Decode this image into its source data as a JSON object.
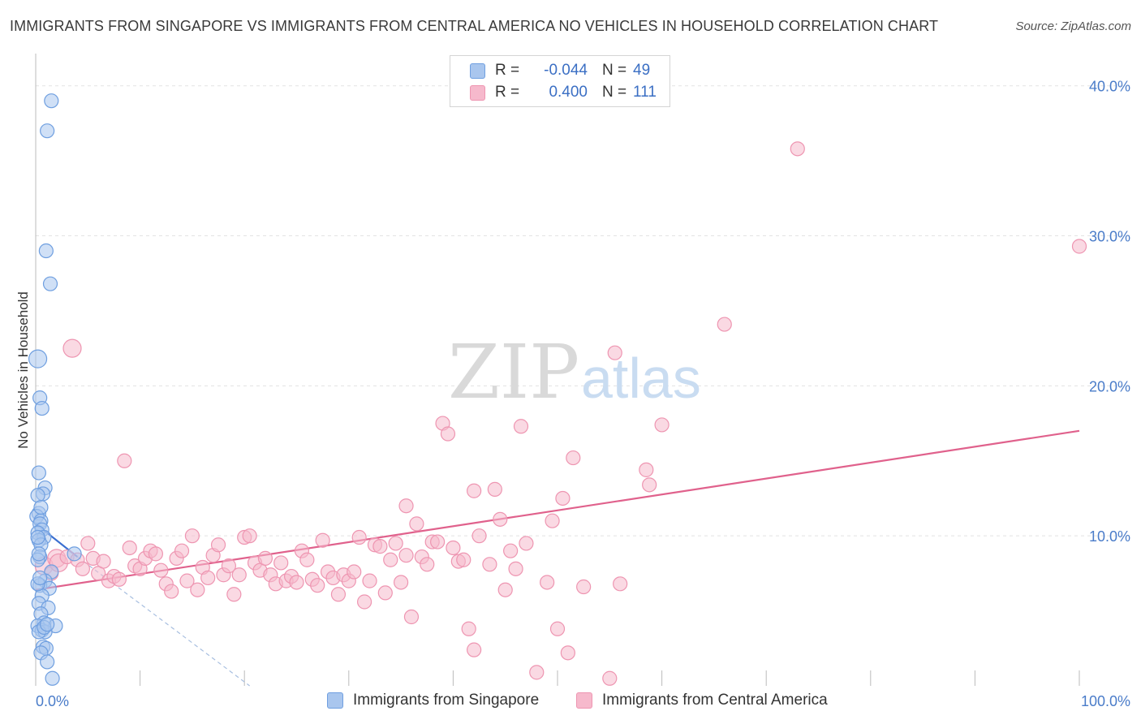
{
  "header": {
    "title": "IMMIGRANTS FROM SINGAPORE VS IMMIGRANTS FROM CENTRAL AMERICA NO VEHICLES IN HOUSEHOLD CORRELATION CHART",
    "source": "Source: ZipAtlas.com"
  },
  "watermark": {
    "zip": "ZIP",
    "atlas": "atlas"
  },
  "legend": {
    "rows": [
      {
        "r_label": "R =",
        "r_value": "-0.044",
        "n_label": "N =",
        "n_value": "49"
      },
      {
        "r_label": "R =",
        "r_value": "0.400",
        "n_label": "N =",
        "n_value": "111"
      }
    ]
  },
  "colors": {
    "singapore_fill": "#a9c6ee",
    "singapore_stroke": "#6f9fe0",
    "singapore_line": "#3a6fd0",
    "central_fill": "#f6b9cc",
    "central_stroke": "#ee95b1",
    "central_line": "#e0618c",
    "grid": "#e2e2e2",
    "tick_text": "#4a7cc9"
  },
  "chart_data": {
    "type": "scatter",
    "ylabel": "No Vehicles in Household",
    "xlim": [
      0,
      100
    ],
    "ylim": [
      0,
      41.5
    ],
    "x_tick_labels": [
      {
        "value": 0,
        "label": "0.0%"
      },
      {
        "value": 100,
        "label": "100.0%"
      }
    ],
    "y_tick_labels": [
      {
        "value": 10,
        "label": "10.0%"
      },
      {
        "value": 20,
        "label": "20.0%"
      },
      {
        "value": 30,
        "label": "30.0%"
      },
      {
        "value": 40,
        "label": "40.0%"
      }
    ],
    "legend_position": "top-center",
    "grid": true,
    "series": [
      {
        "name": "Immigrants from Singapore",
        "points": [
          [
            1.5,
            39.0
          ],
          [
            1.1,
            37.0
          ],
          [
            1.0,
            29.0
          ],
          [
            1.4,
            26.8
          ],
          [
            0.2,
            21.8
          ],
          [
            0.4,
            19.2
          ],
          [
            0.6,
            18.5
          ],
          [
            0.3,
            14.2
          ],
          [
            0.9,
            13.2
          ],
          [
            0.7,
            12.8
          ],
          [
            0.2,
            12.7
          ],
          [
            0.3,
            11.5
          ],
          [
            0.1,
            11.3
          ],
          [
            0.5,
            11.0
          ],
          [
            0.4,
            10.8
          ],
          [
            0.6,
            10.4
          ],
          [
            0.2,
            10.2
          ],
          [
            0.8,
            9.9
          ],
          [
            0.3,
            9.7
          ],
          [
            0.5,
            9.4
          ],
          [
            3.7,
            8.8
          ],
          [
            0.4,
            8.6
          ],
          [
            0.2,
            8.4
          ],
          [
            1.5,
            7.6
          ],
          [
            0.9,
            7.0
          ],
          [
            0.4,
            6.7
          ],
          [
            1.3,
            6.5
          ],
          [
            0.6,
            6.0
          ],
          [
            0.3,
            5.5
          ],
          [
            1.2,
            5.2
          ],
          [
            0.5,
            4.8
          ],
          [
            0.8,
            4.2
          ],
          [
            0.2,
            4.0
          ],
          [
            1.9,
            4.0
          ],
          [
            0.6,
            3.7
          ],
          [
            0.9,
            3.6
          ],
          [
            0.3,
            3.6
          ],
          [
            0.7,
            2.6
          ],
          [
            1.0,
            2.5
          ],
          [
            0.5,
            2.2
          ],
          [
            1.1,
            1.6
          ],
          [
            1.6,
            0.5
          ],
          [
            0.2,
            6.8
          ],
          [
            0.4,
            7.2
          ],
          [
            0.8,
            3.9
          ],
          [
            1.1,
            4.1
          ],
          [
            0.3,
            8.8
          ],
          [
            0.2,
            9.9
          ],
          [
            0.5,
            11.9
          ]
        ]
      },
      {
        "name": "Immigrants from Central America",
        "points": [
          [
            3.5,
            22.5
          ],
          [
            0.8,
            8.0
          ],
          [
            1.5,
            7.5
          ],
          [
            2.0,
            8.5
          ],
          [
            2.2,
            8.2
          ],
          [
            3.0,
            8.6
          ],
          [
            4.0,
            8.4
          ],
          [
            4.5,
            7.8
          ],
          [
            5.0,
            9.5
          ],
          [
            5.5,
            8.5
          ],
          [
            6.0,
            7.5
          ],
          [
            6.5,
            8.3
          ],
          [
            7.0,
            7.0
          ],
          [
            7.5,
            7.3
          ],
          [
            8.0,
            7.1
          ],
          [
            8.5,
            15.0
          ],
          [
            9.0,
            9.2
          ],
          [
            9.5,
            8.0
          ],
          [
            10.0,
            7.8
          ],
          [
            10.5,
            8.5
          ],
          [
            11.0,
            9.0
          ],
          [
            11.5,
            8.8
          ],
          [
            12.0,
            7.7
          ],
          [
            12.5,
            6.8
          ],
          [
            13.0,
            6.3
          ],
          [
            13.5,
            8.5
          ],
          [
            14.0,
            9.0
          ],
          [
            14.5,
            7.0
          ],
          [
            15.0,
            10.0
          ],
          [
            15.5,
            6.4
          ],
          [
            16.0,
            7.9
          ],
          [
            16.5,
            7.2
          ],
          [
            17.0,
            8.7
          ],
          [
            17.5,
            9.4
          ],
          [
            18.0,
            7.4
          ],
          [
            18.5,
            8.0
          ],
          [
            19.0,
            6.1
          ],
          [
            19.5,
            7.4
          ],
          [
            20.0,
            9.9
          ],
          [
            20.5,
            10.0
          ],
          [
            21.0,
            8.2
          ],
          [
            21.5,
            7.7
          ],
          [
            22.0,
            8.5
          ],
          [
            22.5,
            7.4
          ],
          [
            23.0,
            6.8
          ],
          [
            23.5,
            8.2
          ],
          [
            24.0,
            7.0
          ],
          [
            24.5,
            7.3
          ],
          [
            25.0,
            6.9
          ],
          [
            25.5,
            9.0
          ],
          [
            26.0,
            8.4
          ],
          [
            26.5,
            7.1
          ],
          [
            27.0,
            6.7
          ],
          [
            27.5,
            9.7
          ],
          [
            28.0,
            7.6
          ],
          [
            28.5,
            7.2
          ],
          [
            29.0,
            6.1
          ],
          [
            29.5,
            7.4
          ],
          [
            30.0,
            7.0
          ],
          [
            30.5,
            7.6
          ],
          [
            31.0,
            9.9
          ],
          [
            31.5,
            5.6
          ],
          [
            32.0,
            7.0
          ],
          [
            32.5,
            9.4
          ],
          [
            33.0,
            9.3
          ],
          [
            33.5,
            6.2
          ],
          [
            34.0,
            8.4
          ],
          [
            34.5,
            9.5
          ],
          [
            35.0,
            6.9
          ],
          [
            35.5,
            8.7
          ],
          [
            35.5,
            12.0
          ],
          [
            36.0,
            4.6
          ],
          [
            36.5,
            10.8
          ],
          [
            37.0,
            8.6
          ],
          [
            37.5,
            8.1
          ],
          [
            38.0,
            9.6
          ],
          [
            38.5,
            9.6
          ],
          [
            39.0,
            17.5
          ],
          [
            39.5,
            16.8
          ],
          [
            40.0,
            9.2
          ],
          [
            40.5,
            8.3
          ],
          [
            41.0,
            8.4
          ],
          [
            41.5,
            3.8
          ],
          [
            42.0,
            2.4
          ],
          [
            42.0,
            13.0
          ],
          [
            42.5,
            10.0
          ],
          [
            43.5,
            8.1
          ],
          [
            44.0,
            13.1
          ],
          [
            44.5,
            11.1
          ],
          [
            45.0,
            6.4
          ],
          [
            45.5,
            9.0
          ],
          [
            46.0,
            7.8
          ],
          [
            46.5,
            17.3
          ],
          [
            47.0,
            9.5
          ],
          [
            48.0,
            0.9
          ],
          [
            49.0,
            6.9
          ],
          [
            49.5,
            11.0
          ],
          [
            50.0,
            3.8
          ],
          [
            50.5,
            12.5
          ],
          [
            51.0,
            2.2
          ],
          [
            51.5,
            15.2
          ],
          [
            52.5,
            6.6
          ],
          [
            55.0,
            0.5
          ],
          [
            55.5,
            22.2
          ],
          [
            56.0,
            6.8
          ],
          [
            58.5,
            14.4
          ],
          [
            58.8,
            13.4
          ],
          [
            60.0,
            17.4
          ],
          [
            66.0,
            24.1
          ],
          [
            73.0,
            35.8
          ],
          [
            100.0,
            29.3
          ]
        ]
      }
    ],
    "trendlines": [
      {
        "series": "Immigrants from Singapore",
        "solid": [
          [
            0,
            10.8
          ],
          [
            4.0,
            8.6
          ]
        ],
        "dashed": [
          [
            4.0,
            8.6
          ],
          [
            20.5,
            0
          ]
        ]
      },
      {
        "series": "Immigrants from Central America",
        "solid": [
          [
            0,
            6.4
          ],
          [
            100,
            17.0
          ]
        ]
      }
    ]
  },
  "bottom_legend": {
    "items": [
      {
        "label": "Immigrants from Singapore"
      },
      {
        "label": "Immigrants from Central America"
      }
    ]
  }
}
